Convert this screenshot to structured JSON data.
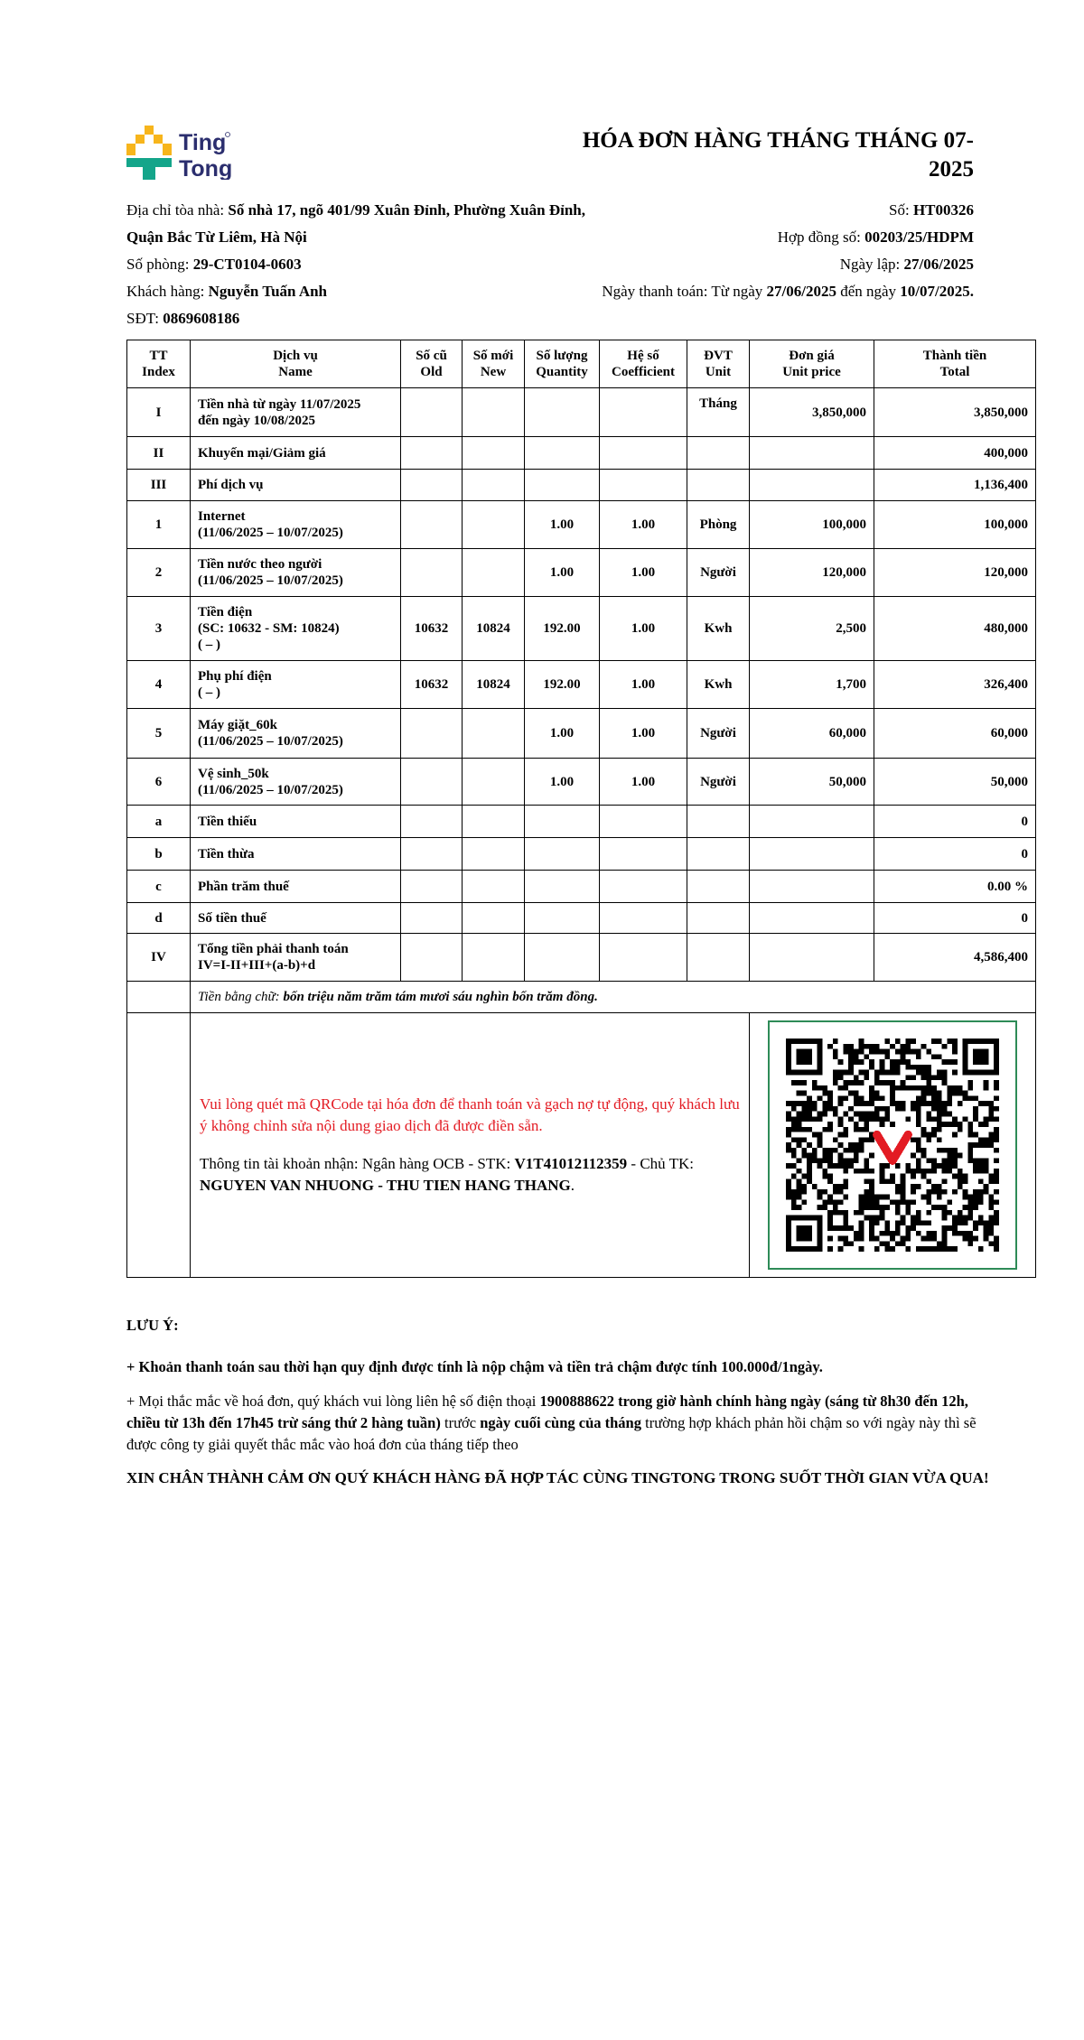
{
  "brand": {
    "logo_text_1": "Ting",
    "logo_text_2": "Tong",
    "colors": {
      "yellow": "#f7b51c",
      "teal": "#14a58a",
      "navy": "#2b2e6e"
    }
  },
  "title": "HÓA ĐƠN HÀNG THÁNG THÁNG 07-2025",
  "info_left": {
    "address_label": "Địa chỉ tòa nhà: ",
    "address": "Số nhà  17, ngõ 401/99 Xuân Đỉnh, Phường Xuân Đỉnh, Quận Bắc Từ Liêm, Hà Nội",
    "room_label": "Số phòng: ",
    "room": "29-CT0104-0603",
    "customer_label": "Khách hàng: ",
    "customer": "Nguyễn Tuấn Anh",
    "phone_label": "SĐT: ",
    "phone": "0869608186"
  },
  "info_right": {
    "no_label": "Số: ",
    "no": "HT00326",
    "contract_label": "Hợp đồng số: ",
    "contract": "00203/25/HDPM",
    "date_label": "Ngày lập: ",
    "date": "27/06/2025",
    "pay_label": "Ngày thanh toán: Từ ngày ",
    "pay_from": "27/06/2025",
    "pay_mid": " đến ngày ",
    "pay_to": "10/07/2025."
  },
  "table": {
    "headers": [
      "TT\nIndex",
      "Dịch vụ\nName",
      "Số cũ\nOld",
      "Số mới\nNew",
      "Số lượng\nQuantity",
      "Hệ số\nCoefficient",
      "ĐVT\nUnit",
      "Đơn giá\nUnit price",
      "Thành tiền\nTotal"
    ],
    "rows": [
      {
        "idx": "I",
        "name": "Tiền nhà từ ngày 11/07/2025\nđến ngày 10/08/2025",
        "old": "",
        "new": "",
        "qty": "",
        "coef": "",
        "unit": "Tháng",
        "price": "3,850,000",
        "total": "3,850,000"
      },
      {
        "idx": "II",
        "name": "Khuyến mại/Giảm giá",
        "old": "",
        "new": "",
        "qty": "",
        "coef": "",
        "unit": "",
        "price": "",
        "total": "400,000"
      },
      {
        "idx": "III",
        "name": "Phí dịch vụ",
        "old": "",
        "new": "",
        "qty": "",
        "coef": "",
        "unit": "",
        "price": "",
        "total": "1,136,400"
      },
      {
        "idx": "1",
        "name": "Internet\n(11/06/2025 – 10/07/2025)",
        "old": "",
        "new": "",
        "qty": "1.00",
        "coef": "1.00",
        "unit": "Phòng",
        "price": "100,000",
        "total": "100,000"
      },
      {
        "idx": "2",
        "name": "Tiền nước theo người\n(11/06/2025 – 10/07/2025)",
        "old": "",
        "new": "",
        "qty": "1.00",
        "coef": "1.00",
        "unit": "Người",
        "price": "120,000",
        "total": "120,000"
      },
      {
        "idx": "3",
        "name": "Tiền điện\n(SC: 10632 - SM: 10824)\n( – )",
        "old": "10632",
        "new": "10824",
        "qty": "192.00",
        "coef": "1.00",
        "unit": "Kwh",
        "price": "2,500",
        "total": "480,000"
      },
      {
        "idx": "4",
        "name": "Phụ phí điện\n( – )",
        "old": "10632",
        "new": "10824",
        "qty": "192.00",
        "coef": "1.00",
        "unit": "Kwh",
        "price": "1,700",
        "total": "326,400"
      },
      {
        "idx": "5",
        "name": "Máy giặt_60k\n(11/06/2025 – 10/07/2025)",
        "old": "",
        "new": "",
        "qty": "1.00",
        "coef": "1.00",
        "unit": "Người",
        "price": "60,000",
        "total": "60,000"
      },
      {
        "idx": "6",
        "name": "Vệ sinh_50k\n(11/06/2025 – 10/07/2025)",
        "old": "",
        "new": "",
        "qty": "1.00",
        "coef": "1.00",
        "unit": "Người",
        "price": "50,000",
        "total": "50,000"
      },
      {
        "idx": "a",
        "name": "Tiền thiếu",
        "old": "",
        "new": "",
        "qty": "",
        "coef": "",
        "unit": "",
        "price": "",
        "total": "0"
      },
      {
        "idx": "b",
        "name": "Tiền thừa",
        "old": "",
        "new": "",
        "qty": "",
        "coef": "",
        "unit": "",
        "price": "",
        "total": "0"
      },
      {
        "idx": "c",
        "name": "Phần trăm thuế",
        "old": "",
        "new": "",
        "qty": "",
        "coef": "",
        "unit": "",
        "price": "",
        "total": "0.00 %"
      },
      {
        "idx": "d",
        "name": "Số tiền thuế",
        "old": "",
        "new": "",
        "qty": "",
        "coef": "",
        "unit": "",
        "price": "",
        "total": "0"
      },
      {
        "idx": "IV",
        "name": "Tổng tiền phải thanh toán\nIV=I-II+III+(a-b)+d",
        "old": "",
        "new": "",
        "qty": "",
        "coef": "",
        "unit": "",
        "price": "",
        "total": "4,586,400"
      }
    ],
    "words_label": "Tiền bằng chữ: ",
    "words": "bốn triệu năm trăm tám mươi sáu nghìn bốn trăm đồng."
  },
  "payment": {
    "notice": "Vui lòng quét mã QRCode tại hóa đơn để thanh toán và gạch nợ tự động, quý khách lưu ý không chỉnh sửa nội dung giao dịch đã được điền sẵn.",
    "account_label": "Thông tin tài khoản nhận: Ngân hàng OCB - STK: ",
    "account_no": "V1T41012112359",
    "holder_label": " - Chủ TK: ",
    "holder": "NGUYEN VAN NHUONG - THU TIEN HANG THANG",
    "holder_end": ".",
    "qr_border_color": "#2e8b57",
    "qr_logo_color": "#e31b23"
  },
  "notes": {
    "heading": "LƯU Ý:",
    "late": "+ Khoản thanh toán sau thời hạn quy định được tính là nộp chậm và tiền trả chậm được tính 100.000đ/1ngày.",
    "contact_1": "+ Mọi thắc mắc về hoá đơn, quý khách vui lòng liên hệ số điện thoại ",
    "contact_2": "1900888622 trong giờ hành chính hàng ngày (sáng từ 8h30 đến 12h, chiều từ 13h đến 17h45 trừ sáng thứ 2 hàng tuần)",
    "contact_3": " trước ",
    "contact_4": "ngày cuối cùng của tháng",
    "contact_5": " trường hợp khách phản hồi chậm so với ngày này thì sẽ được công ty giải quyết thắc mắc vào hoá đơn của tháng tiếp theo",
    "thanks": "XIN CHÂN THÀNH CẢM ƠN QUÝ KHÁCH HÀNG ĐÃ HỢP TÁC CÙNG TINGTONG TRONG SUỐT THỜI GIAN VỪA QUA!"
  }
}
